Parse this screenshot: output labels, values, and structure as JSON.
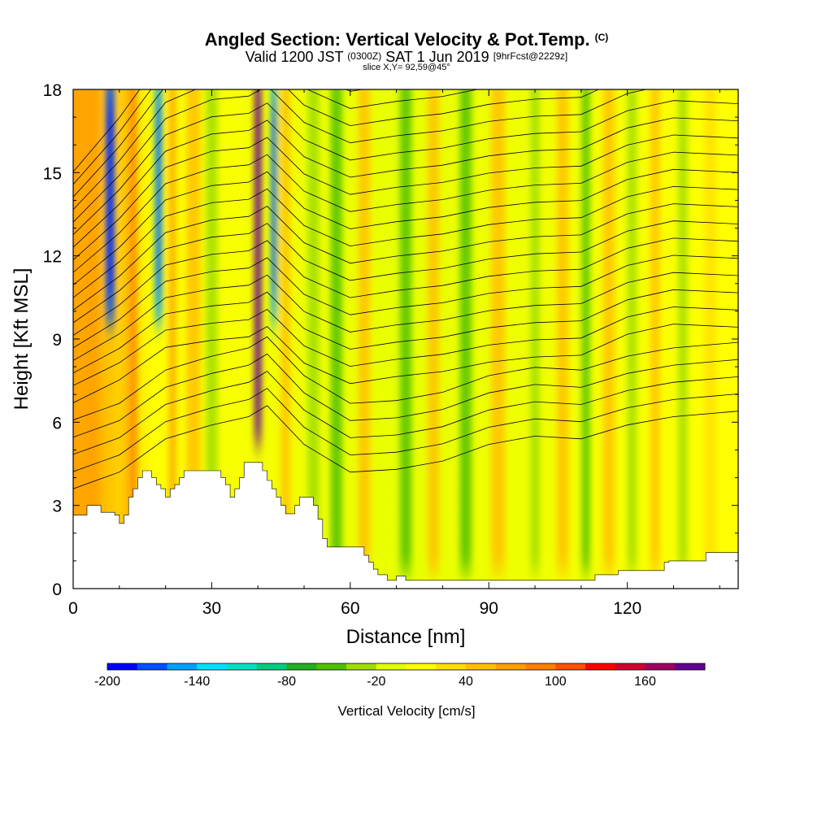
{
  "header": {
    "title": "Angled Section: Vertical Velocity & Pot.Temp.",
    "title_unit": "(C)",
    "valid_prefix": "Valid 1200 JST",
    "valid_zulu": "(0300Z)",
    "valid_date": "SAT 1 Jun 2019",
    "forecast": "[9hrFcst@2229z]",
    "slice": "slice X,Y= 92,59@45°"
  },
  "chart_data": {
    "type": "heatmap",
    "title": "Angled Section: Vertical Velocity & Pot.Temp. (C)",
    "xlabel": "Distance [nm]",
    "ylabel": "Height [Kft MSL]",
    "xlim": [
      0,
      144
    ],
    "ylim": [
      0,
      18
    ],
    "xticks": [
      "0",
      "30",
      "60",
      "90",
      "120"
    ],
    "yticks": [
      "0",
      "3",
      "6",
      "9",
      "12",
      "15",
      "18"
    ],
    "colorbar": {
      "label": "Vertical Velocity [cm/s]",
      "ticks": [
        "-200",
        "-140",
        "-80",
        "-20",
        "40",
        "100",
        "160"
      ],
      "colors": [
        "#0000ff",
        "#0050ff",
        "#00a0ff",
        "#00e0ff",
        "#00e0c0",
        "#00cc80",
        "#20b020",
        "#50c000",
        "#a0dc00",
        "#e0ff00",
        "#ffff00",
        "#ffe000",
        "#ffc000",
        "#ffa000",
        "#ff8000",
        "#ff5000",
        "#ff0000",
        "#d00030",
        "#a00060",
        "#600090"
      ]
    },
    "terrain": [
      [
        0,
        2.65
      ],
      [
        3,
        2.65
      ],
      [
        3,
        3.0
      ],
      [
        6,
        3.0
      ],
      [
        6,
        2.75
      ],
      [
        9,
        2.75
      ],
      [
        9,
        2.65
      ],
      [
        10,
        2.65
      ],
      [
        10,
        2.35
      ],
      [
        11,
        2.35
      ],
      [
        11,
        2.65
      ],
      [
        12,
        2.65
      ],
      [
        12,
        3.3
      ],
      [
        13,
        3.3
      ],
      [
        13,
        3.6
      ],
      [
        14,
        3.6
      ],
      [
        14,
        4.0
      ],
      [
        15,
        4.0
      ],
      [
        15,
        4.25
      ],
      [
        17,
        4.25
      ],
      [
        17,
        4.0
      ],
      [
        18,
        4.0
      ],
      [
        18,
        3.75
      ],
      [
        19,
        3.75
      ],
      [
        19,
        3.6
      ],
      [
        20,
        3.6
      ],
      [
        20,
        3.3
      ],
      [
        21,
        3.3
      ],
      [
        21,
        3.6
      ],
      [
        22,
        3.6
      ],
      [
        22,
        3.75
      ],
      [
        23,
        3.75
      ],
      [
        23,
        4.0
      ],
      [
        24,
        4.0
      ],
      [
        24,
        4.25
      ],
      [
        32,
        4.25
      ],
      [
        32,
        4.0
      ],
      [
        33,
        4.0
      ],
      [
        33,
        3.75
      ],
      [
        34,
        3.75
      ],
      [
        34,
        3.3
      ],
      [
        35,
        3.3
      ],
      [
        35,
        3.6
      ],
      [
        36,
        3.6
      ],
      [
        36,
        4.0
      ],
      [
        37,
        4.0
      ],
      [
        37,
        4.55
      ],
      [
        41,
        4.55
      ],
      [
        41,
        4.25
      ],
      [
        42,
        4.25
      ],
      [
        42,
        3.9
      ],
      [
        43,
        3.9
      ],
      [
        43,
        3.6
      ],
      [
        44,
        3.6
      ],
      [
        44,
        3.3
      ],
      [
        45,
        3.3
      ],
      [
        45,
        3.0
      ],
      [
        46,
        3.0
      ],
      [
        46,
        2.7
      ],
      [
        48,
        2.7
      ],
      [
        48,
        3.0
      ],
      [
        49,
        3.0
      ],
      [
        49,
        3.3
      ],
      [
        52,
        3.3
      ],
      [
        52,
        3.0
      ],
      [
        53,
        3.0
      ],
      [
        53,
        2.5
      ],
      [
        54,
        2.5
      ],
      [
        54,
        1.8
      ],
      [
        55,
        1.8
      ],
      [
        55,
        1.5
      ],
      [
        63,
        1.5
      ],
      [
        63,
        1.2
      ],
      [
        64,
        1.2
      ],
      [
        64,
        0.95
      ],
      [
        65,
        0.95
      ],
      [
        65,
        0.7
      ],
      [
        66,
        0.7
      ],
      [
        66,
        0.5
      ],
      [
        68,
        0.5
      ],
      [
        68,
        0.3
      ],
      [
        70,
        0.3
      ],
      [
        70,
        0.45
      ],
      [
        72,
        0.45
      ],
      [
        72,
        0.3
      ],
      [
        113,
        0.3
      ],
      [
        113,
        0.5
      ],
      [
        118,
        0.5
      ],
      [
        118,
        0.65
      ],
      [
        128,
        0.65
      ],
      [
        128,
        0.95
      ],
      [
        129,
        0.95
      ],
      [
        129,
        1.0
      ],
      [
        137,
        1.0
      ],
      [
        137,
        1.3
      ],
      [
        144,
        1.3
      ]
    ],
    "velocity_bands": [
      {
        "x": 4,
        "w": 3,
        "v": 60
      },
      {
        "x": 8,
        "w": 2,
        "v": -170
      },
      {
        "x": 11.5,
        "w": 2,
        "v": 40
      },
      {
        "x": 13,
        "w": 1.6,
        "v": 90
      },
      {
        "x": 18.5,
        "w": 1.6,
        "v": -150
      },
      {
        "x": 21.5,
        "w": 1.5,
        "v": 70
      },
      {
        "x": 26,
        "w": 3,
        "v": 50
      },
      {
        "x": 30,
        "w": 2.5,
        "v": -40
      },
      {
        "x": 40,
        "w": 1.5,
        "v": 200
      },
      {
        "x": 43.5,
        "w": 1.3,
        "v": -160
      },
      {
        "x": 46,
        "w": 2,
        "v": 40
      },
      {
        "x": 52,
        "w": 2.5,
        "v": -40
      },
      {
        "x": 57,
        "w": 2.5,
        "v": -60
      },
      {
        "x": 63,
        "w": 2.5,
        "v": 45
      },
      {
        "x": 72,
        "w": 2.5,
        "v": -55
      },
      {
        "x": 78,
        "w": 2.5,
        "v": 45
      },
      {
        "x": 85,
        "w": 2.5,
        "v": -45
      },
      {
        "x": 92,
        "w": 3,
        "v": 40
      },
      {
        "x": 100,
        "w": 2,
        "v": -40
      },
      {
        "x": 106,
        "w": 2.5,
        "v": 55
      },
      {
        "x": 111,
        "w": 1.8,
        "v": -60
      },
      {
        "x": 116,
        "w": 2.5,
        "v": 40
      },
      {
        "x": 121,
        "w": 2,
        "v": -40
      },
      {
        "x": 126,
        "w": 2,
        "v": 45
      },
      {
        "x": 132,
        "w": 2,
        "v": -40
      },
      {
        "x": 138,
        "w": 2.5,
        "v": 35
      }
    ],
    "isentrope_base": [
      {
        "x": 0,
        "y": 3.6
      },
      {
        "x": 10,
        "y": 4.2
      },
      {
        "x": 20,
        "y": 5.4
      },
      {
        "x": 30,
        "y": 5.9
      },
      {
        "x": 38,
        "y": 6.2
      },
      {
        "x": 42,
        "y": 6.6
      },
      {
        "x": 50,
        "y": 5.2
      },
      {
        "x": 60,
        "y": 4.2
      },
      {
        "x": 70,
        "y": 4.3
      },
      {
        "x": 80,
        "y": 4.6
      },
      {
        "x": 90,
        "y": 5.2
      },
      {
        "x": 100,
        "y": 5.5
      },
      {
        "x": 110,
        "y": 5.4
      },
      {
        "x": 120,
        "y": 5.9
      },
      {
        "x": 130,
        "y": 6.2
      },
      {
        "x": 144,
        "y": 6.4
      }
    ]
  }
}
